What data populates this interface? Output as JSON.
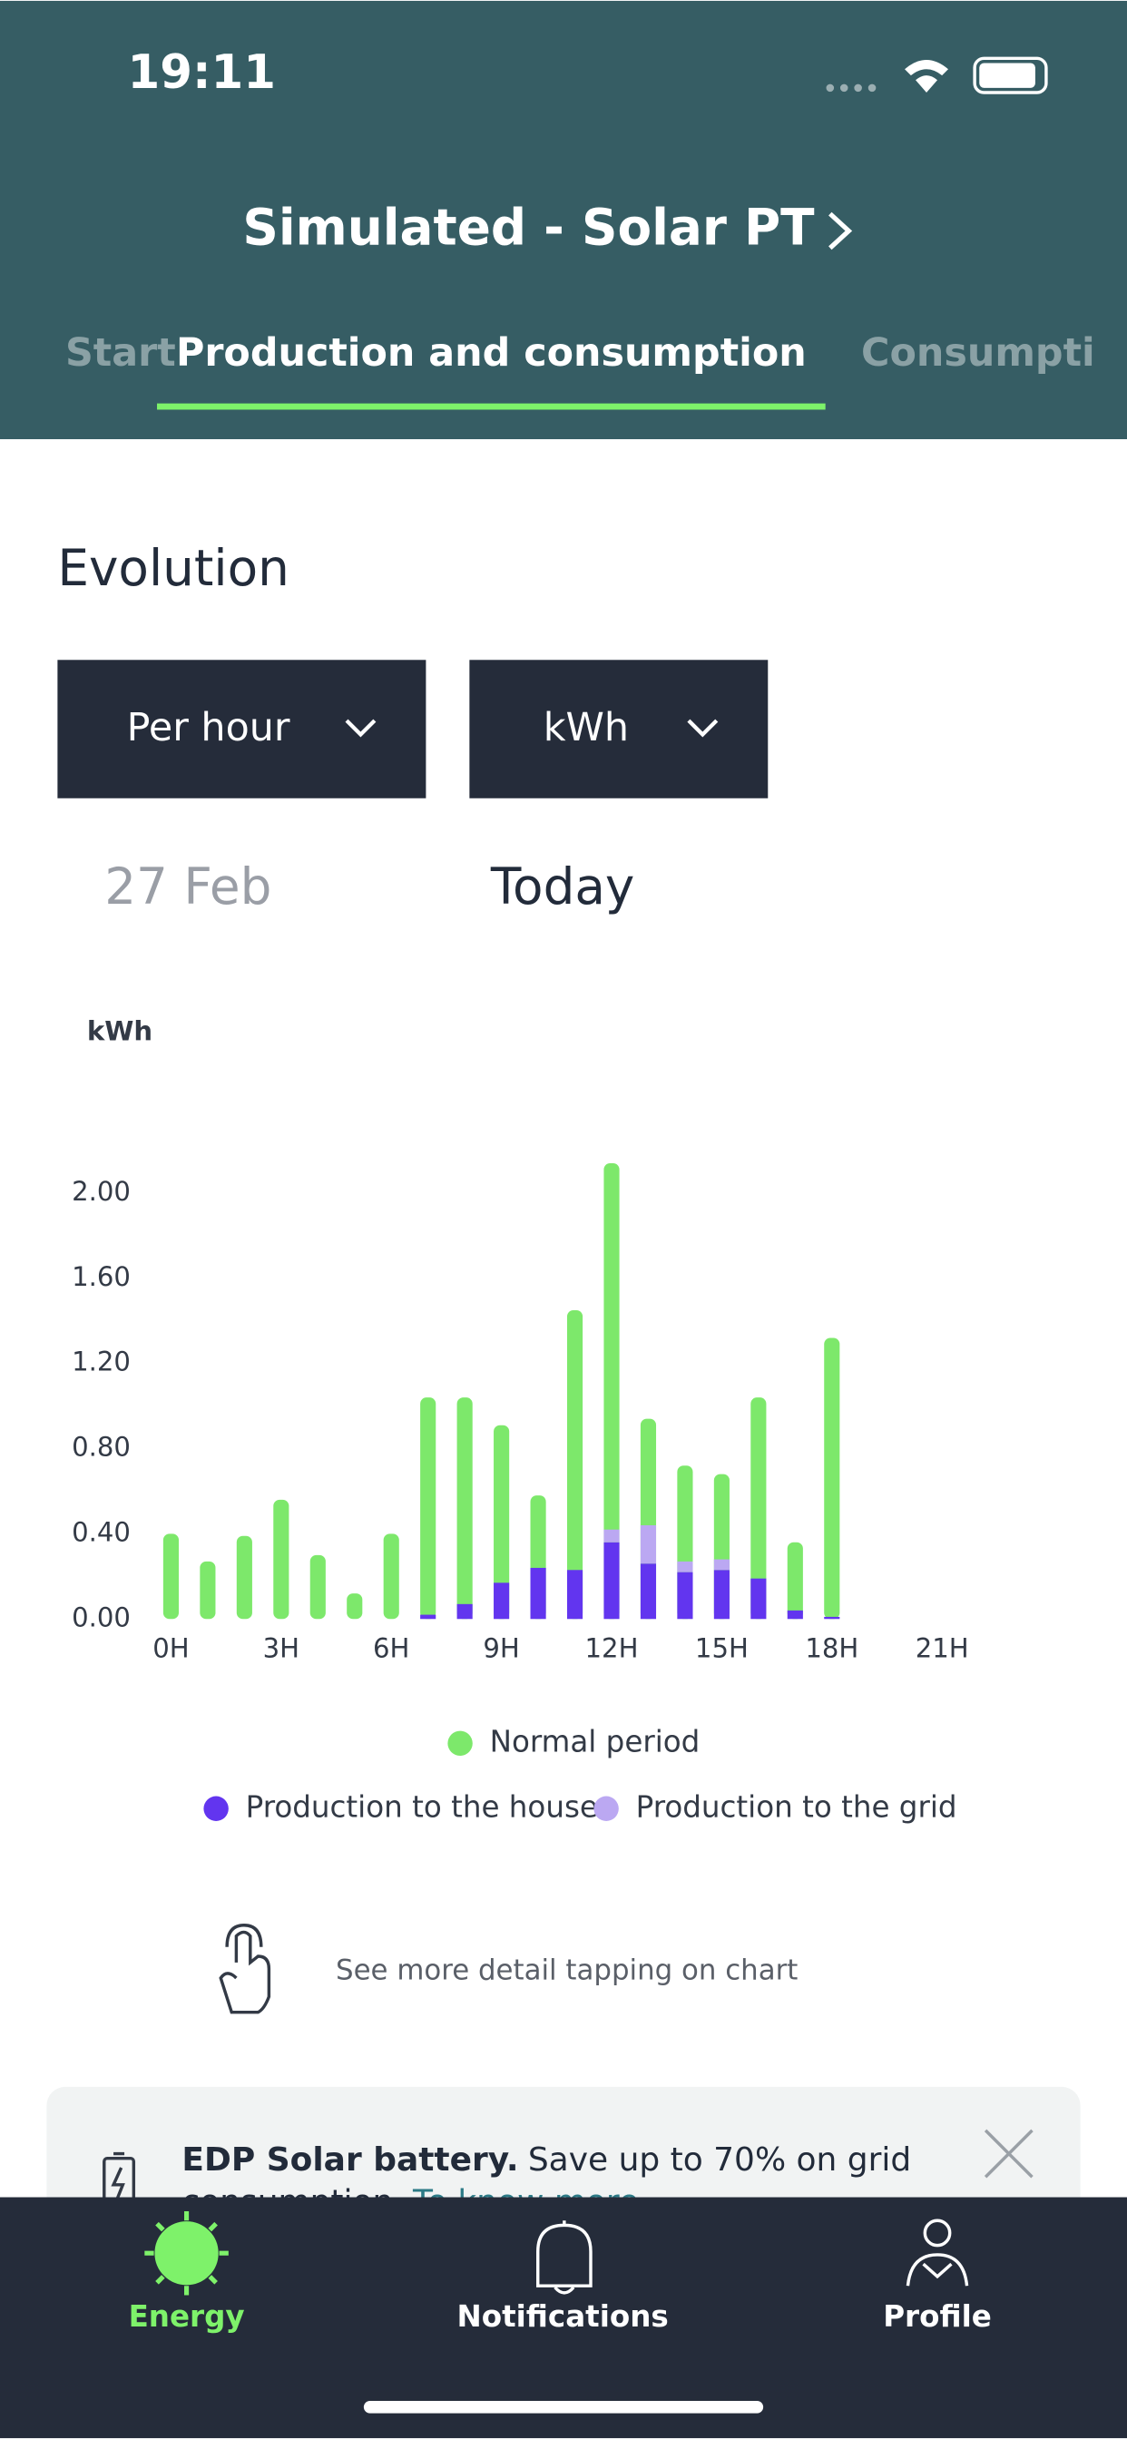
{
  "ui": {
    "status_time": "19:11",
    "header_title": "Simulated - Solar PT",
    "tabs": [
      "Start",
      "Production and consumption",
      "Consumpti"
    ],
    "section_title": "Evolution",
    "dropdown_period": "Per hour",
    "dropdown_unit": "kWh",
    "date_prev": "27 Feb",
    "date_current": "Today",
    "hint": "See more detail tapping on chart",
    "banner": {
      "title": "EDP Solar battery.",
      "text": "Save up to 70% on grid",
      "text_cont": "consumption.",
      "link": "To know more"
    },
    "nav": [
      "Energy",
      "Notifications",
      "Profile"
    ]
  },
  "chart_data": {
    "type": "bar",
    "y_label": "kWh",
    "grid": false,
    "categories": [
      "0H",
      null,
      null,
      "3H",
      null,
      null,
      "6H",
      null,
      null,
      "9H",
      null,
      null,
      "12H",
      null,
      null,
      "15H",
      null,
      null,
      "18H",
      null,
      null,
      "21H",
      null,
      null
    ],
    "series": [
      {
        "name": "Normal period",
        "color": "#7de86b",
        "values": [
          0.4,
          0.27,
          0.39,
          0.56,
          0.3,
          0.12,
          0.4,
          1.04,
          1.04,
          0.91,
          0.58,
          1.45,
          2.14,
          0.94,
          0.72,
          0.68,
          1.04,
          0.36,
          1.32,
          null,
          null,
          null,
          null,
          null
        ]
      },
      {
        "name": "Production to the house",
        "color": "#6235ef",
        "values": [
          0,
          0,
          0,
          0,
          0,
          0,
          0,
          0.02,
          0.07,
          0.17,
          0.24,
          0.23,
          0.36,
          0.26,
          0.22,
          0.23,
          0.19,
          0.04,
          0.01,
          null,
          null,
          null,
          null,
          null
        ]
      },
      {
        "name": "Production to the grid",
        "color": "#bba8f2",
        "values": [
          0,
          0,
          0,
          0,
          0,
          0,
          0,
          0,
          0,
          0,
          0,
          0,
          0.06,
          0.18,
          0.05,
          0.05,
          0,
          0,
          0,
          null,
          null,
          null,
          null,
          null
        ]
      }
    ],
    "ylim": [
      0,
      2.2
    ],
    "yticks": [
      {
        "value": 0,
        "label": "0.00"
      },
      {
        "value": 0.4,
        "label": "0.40"
      },
      {
        "value": 0.8,
        "label": "0.80"
      },
      {
        "value": 1.2,
        "label": "1.20"
      },
      {
        "value": 1.6,
        "label": "1.60"
      },
      {
        "value": 2,
        "label": "2.00"
      }
    ]
  }
}
